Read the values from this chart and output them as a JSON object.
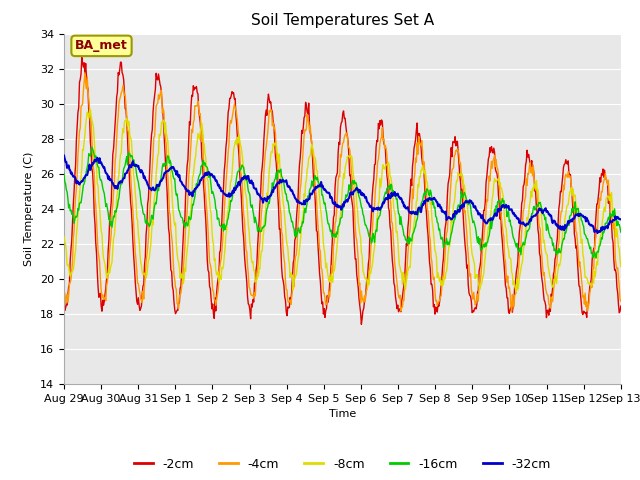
{
  "title": "Soil Temperatures Set A",
  "xlabel": "Time",
  "ylabel": "Soil Temperature (C)",
  "ylim": [
    14,
    34
  ],
  "yticks": [
    14,
    16,
    18,
    20,
    22,
    24,
    26,
    28,
    30,
    32,
    34
  ],
  "annotation": "BA_met",
  "line_colors": {
    "-2cm": "#dd0000",
    "-4cm": "#ff9900",
    "-8cm": "#dddd00",
    "-16cm": "#00cc00",
    "-32cm": "#0000cc"
  },
  "background_color": "#e8e8e8",
  "fig_background": "#ffffff",
  "xtick_labels": [
    "Aug 29",
    "Aug 30",
    "Aug 31",
    "Sep 1",
    "Sep 2",
    "Sep 3",
    "Sep 4",
    "Sep 5",
    "Sep 6",
    "Sep 7",
    "Sep 8",
    "Sep 9",
    "Sep 10",
    "Sep 11",
    "Sep 12",
    "Sep 13"
  ],
  "n_days": 15,
  "samples_per_day": 48,
  "grid_color": "#ffffff",
  "title_fontsize": 11,
  "axis_label_fontsize": 8,
  "tick_fontsize": 8,
  "legend_fontsize": 9
}
